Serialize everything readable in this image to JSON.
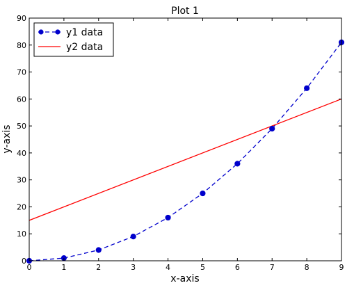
{
  "chart_data": {
    "type": "line",
    "title": "Plot 1",
    "xlabel": "x-axis",
    "ylabel": "y-axis",
    "xlim": [
      0,
      9
    ],
    "ylim": [
      0,
      90
    ],
    "x_ticks": [
      0,
      1,
      2,
      3,
      4,
      5,
      6,
      7,
      8,
      9
    ],
    "y_ticks": [
      0,
      10,
      20,
      30,
      40,
      50,
      60,
      70,
      80,
      90
    ],
    "grid": false,
    "legend_position": "top-left",
    "series": [
      {
        "name": "y1 data",
        "x": [
          0,
          1,
          2,
          3,
          4,
          5,
          6,
          7,
          8,
          9
        ],
        "y": [
          0,
          1,
          4,
          9,
          16,
          25,
          36,
          49,
          64,
          81
        ],
        "color": "#0000cc",
        "line_style": "dashed",
        "marker": "circle"
      },
      {
        "name": "y2 data",
        "x": [
          0,
          9
        ],
        "y": [
          15,
          60
        ],
        "color": "#ff0000",
        "line_style": "solid",
        "marker": "none"
      }
    ]
  }
}
